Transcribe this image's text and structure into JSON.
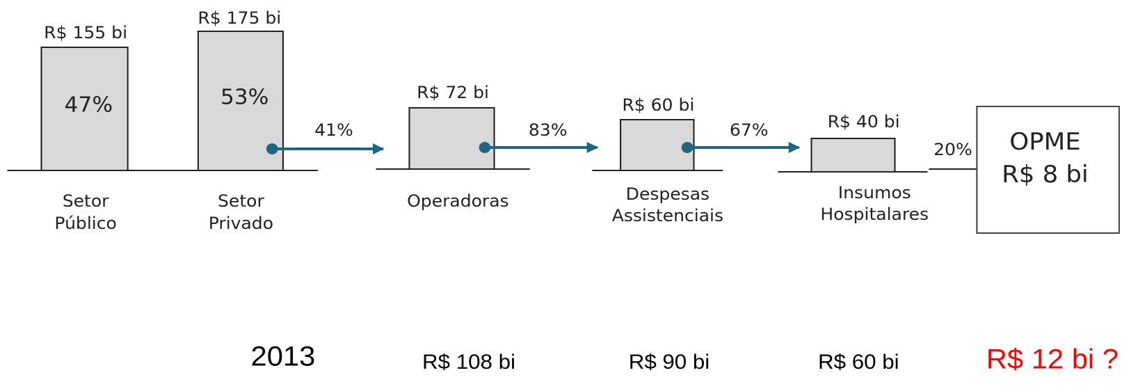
{
  "bars": [
    {
      "value_label": "R$ 155 bi",
      "share": "47%",
      "label": [
        "Setor",
        "Público"
      ]
    },
    {
      "value_label": "R$ 175 bi",
      "share": "53%",
      "label": [
        "Setor",
        "Privado"
      ]
    },
    {
      "value_label": "R$ 72 bi",
      "label": [
        "Operadoras"
      ]
    },
    {
      "value_label": "R$ 60 bi",
      "label": [
        "Despesas",
        "Assistenciais"
      ]
    },
    {
      "value_label": "R$ 40 bi",
      "label": [
        "Insumos",
        "Hospitalares"
      ]
    }
  ],
  "arrows": [
    "41%",
    "83%",
    "67%",
    "20%"
  ],
  "result": {
    "title": "OPME",
    "value": "R$ 8 bi"
  },
  "year": "2013",
  "projections": [
    "R$ 108 bi",
    "R$ 90 bi",
    "R$ 60 bi",
    "R$ 12 bi ?"
  ]
}
